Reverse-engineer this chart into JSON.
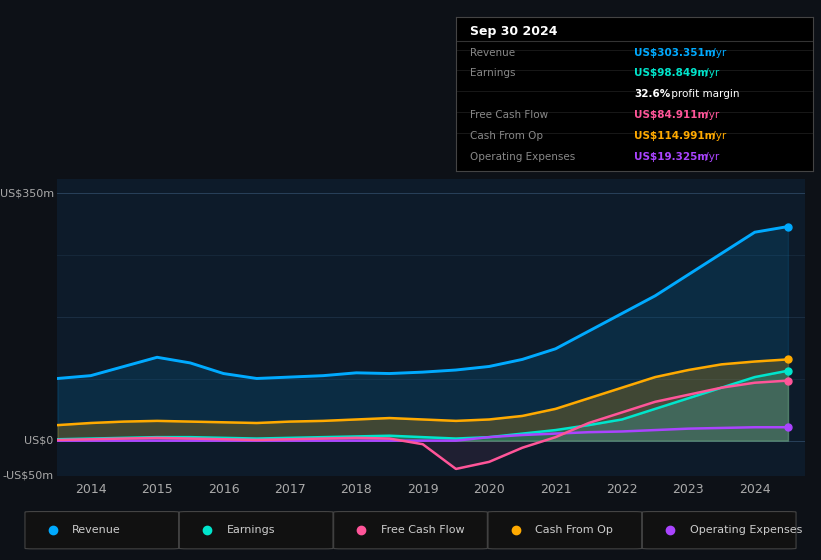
{
  "bg_color": "#0d1117",
  "plot_bg_color": "#0d1b2a",
  "years": [
    2013.5,
    2014.0,
    2014.5,
    2015.0,
    2015.5,
    2016.0,
    2016.5,
    2017.0,
    2017.5,
    2018.0,
    2018.5,
    2019.0,
    2019.5,
    2020.0,
    2020.5,
    2021.0,
    2021.5,
    2022.0,
    2022.5,
    2023.0,
    2023.5,
    2024.0,
    2024.5
  ],
  "revenue": [
    88,
    92,
    105,
    118,
    110,
    95,
    88,
    90,
    92,
    96,
    95,
    97,
    100,
    105,
    115,
    130,
    155,
    180,
    205,
    235,
    265,
    295,
    303
  ],
  "earnings": [
    2,
    3,
    4,
    5,
    5,
    4,
    3,
    4,
    5,
    6,
    7,
    5,
    3,
    5,
    10,
    15,
    22,
    30,
    45,
    60,
    75,
    90,
    99
  ],
  "free_cash_flow": [
    1,
    2,
    3,
    4,
    3,
    2,
    1,
    2,
    3,
    4,
    3,
    -5,
    -40,
    -30,
    -10,
    5,
    25,
    40,
    55,
    65,
    75,
    82,
    85
  ],
  "cash_from_op": [
    22,
    25,
    27,
    28,
    27,
    26,
    25,
    27,
    28,
    30,
    32,
    30,
    28,
    30,
    35,
    45,
    60,
    75,
    90,
    100,
    108,
    112,
    115
  ],
  "operating_expenses": [
    0,
    0,
    0,
    0,
    0,
    0,
    0,
    0,
    0,
    0,
    0,
    0,
    0,
    5,
    8,
    10,
    12,
    13,
    15,
    17,
    18,
    19,
    19
  ],
  "revenue_color": "#00aaff",
  "earnings_color": "#00e5cc",
  "fcf_color": "#ff5599",
  "cashop_color": "#ffaa00",
  "opex_color": "#aa44ff",
  "ylim": [
    -50,
    370
  ],
  "ytick_labels": [
    "-US$50m",
    "US$0",
    "US$350m"
  ],
  "xtick_years": [
    2014,
    2015,
    2016,
    2017,
    2018,
    2019,
    2020,
    2021,
    2022,
    2023,
    2024
  ],
  "tooltip_date": "Sep 30 2024",
  "tooltip_rows": [
    {
      "label": "Revenue",
      "value": "US$303.351m",
      "suffix": " /yr",
      "color": "#00aaff",
      "bold": true
    },
    {
      "label": "Earnings",
      "value": "US$98.849m",
      "suffix": " /yr",
      "color": "#00e5cc",
      "bold": true
    },
    {
      "label": "",
      "value": "32.6%",
      "suffix": " profit margin",
      "color": "#ffffff",
      "bold": true
    },
    {
      "label": "Free Cash Flow",
      "value": "US$84.911m",
      "suffix": " /yr",
      "color": "#ff5599",
      "bold": true
    },
    {
      "label": "Cash From Op",
      "value": "US$114.991m",
      "suffix": " /yr",
      "color": "#ffaa00",
      "bold": true
    },
    {
      "label": "Operating Expenses",
      "value": "US$19.325m",
      "suffix": " /yr",
      "color": "#aa44ff",
      "bold": true
    }
  ],
  "legend_items": [
    {
      "label": "Revenue",
      "color": "#00aaff"
    },
    {
      "label": "Earnings",
      "color": "#00e5cc"
    },
    {
      "label": "Free Cash Flow",
      "color": "#ff5599"
    },
    {
      "label": "Cash From Op",
      "color": "#ffaa00"
    },
    {
      "label": "Operating Expenses",
      "color": "#aa44ff"
    }
  ]
}
